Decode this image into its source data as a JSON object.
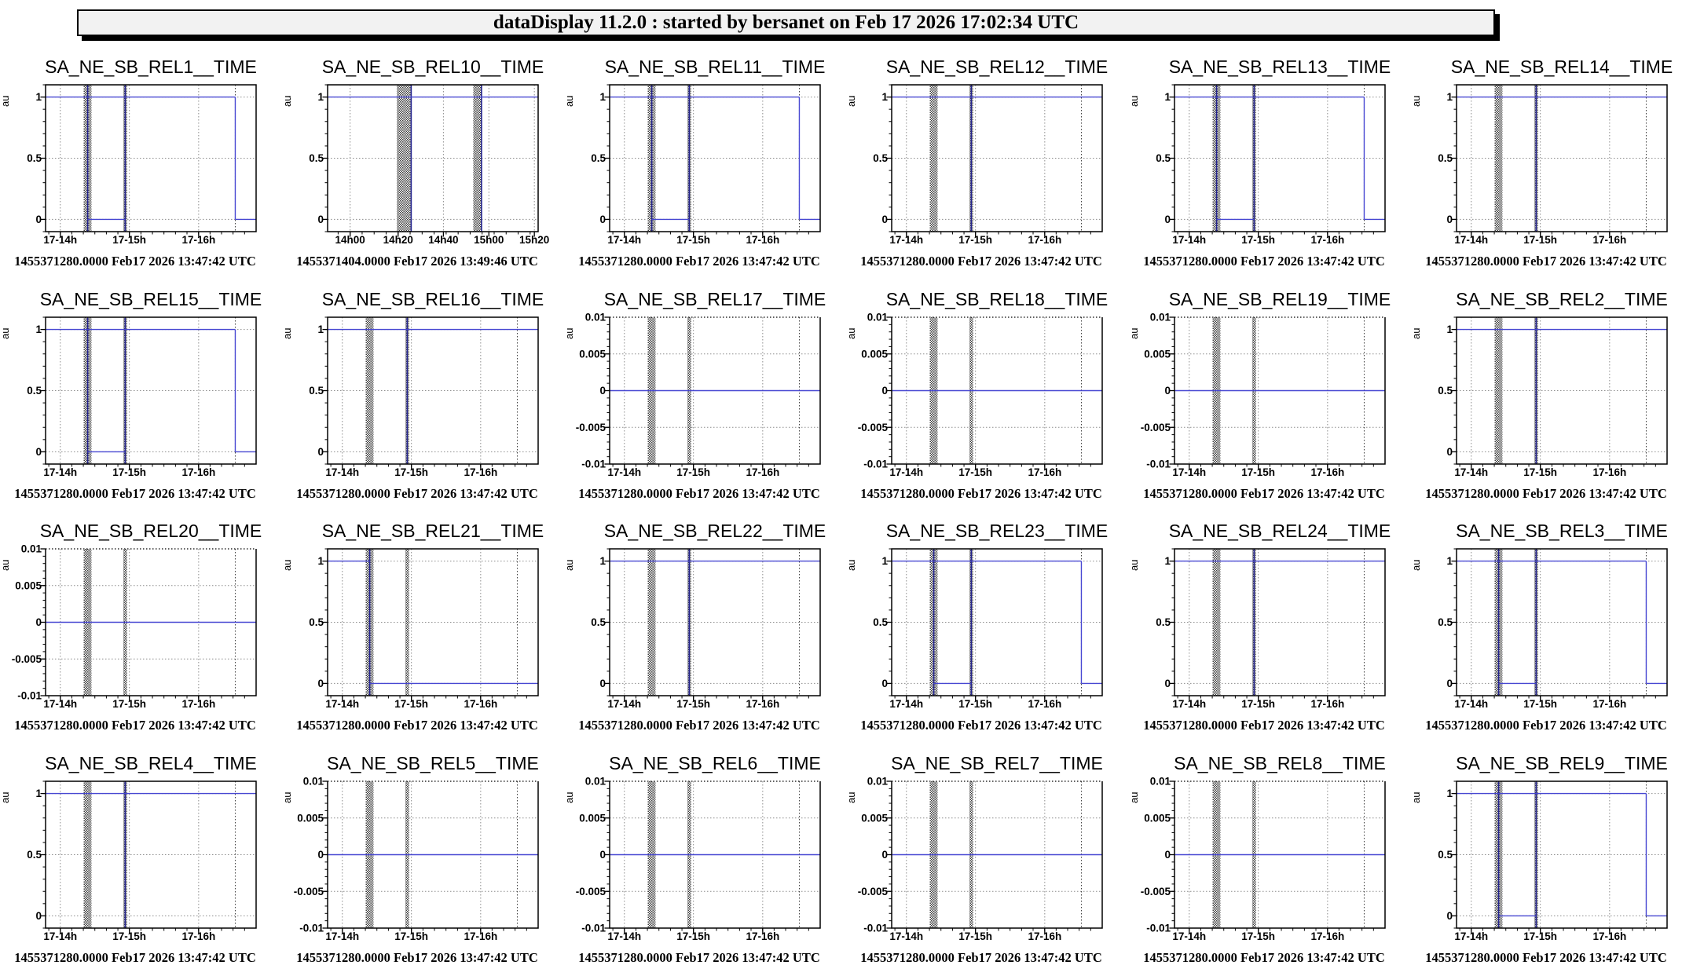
{
  "header": {
    "title": "dataDisplay 11.2.0 : started by bersanet on Feb 17 2026 17:02:34 UTC"
  },
  "colors": {
    "signal_blue": "#4747d2",
    "bar_vertical_blue": "#23238e",
    "grid_gray": "#8c8c8c",
    "marker_black": "#3c3c3c",
    "frame_black": "#000000",
    "hatch_black": "#1a1a1a",
    "text_black": "#000000",
    "header_bg": "#f2f2f2"
  },
  "y_axes": {
    "binary": {
      "min": -0.1,
      "max": 1.1,
      "minor_step": 0.1,
      "dotted_top": false,
      "majors": [
        {
          "v": 0,
          "label": "0"
        },
        {
          "v": 0.5,
          "label": "0.5"
        },
        {
          "v": 1,
          "label": "1"
        }
      ]
    },
    "micro": {
      "min": -0.01,
      "max": 0.01,
      "minor_step": 0.001,
      "dotted_top": true,
      "majors": [
        {
          "v": -0.01,
          "label": "-0.01"
        },
        {
          "v": -0.005,
          "label": "-0.005"
        },
        {
          "v": 0,
          "label": "0"
        },
        {
          "v": 0.005,
          "label": "0.005"
        },
        {
          "v": 0.01,
          "label": "0.01"
        }
      ]
    }
  },
  "x_axes": {
    "standard": {
      "majors": [
        {
          "f": 0.07,
          "label": "17-14h"
        },
        {
          "f": 0.398,
          "label": "17-15h"
        },
        {
          "f": 0.727,
          "label": "17-16h"
        }
      ],
      "minor_step": 0.0547,
      "minor_phase": 0.0153,
      "marker_f": 0.901,
      "bars": [
        [
          0.181,
          0.218
        ],
        [
          0.369,
          0.387
        ]
      ]
    },
    "rel10": {
      "majors": [
        {
          "f": 0.107,
          "label": "14h00"
        },
        {
          "f": 0.335,
          "label": "14h20"
        },
        {
          "f": 0.55,
          "label": "14h40"
        },
        {
          "f": 0.766,
          "label": "15h00"
        },
        {
          "f": 0.982,
          "label": "15h20"
        }
      ],
      "minor_step": 0.057,
      "minor_phase": 0.05,
      "marker_f": null,
      "bars": [
        [
          0.329,
          0.397
        ],
        [
          0.692,
          0.731
        ]
      ]
    }
  },
  "patterns": {
    "toggle": {
      "segments": [
        [
          0,
          0.901,
          1
        ],
        [
          0.2,
          0.378,
          0
        ],
        [
          0.901,
          1,
          0
        ]
      ],
      "bar_verticals": [
        0.2,
        0.378
      ],
      "drop_f": 0.901
    },
    "high": {
      "segments": [
        [
          0,
          1,
          1
        ]
      ],
      "bar_verticals": [
        0.378
      ],
      "drop_f": null
    },
    "drop_low": {
      "segments": [
        [
          0,
          0.2,
          1
        ],
        [
          0.2,
          1,
          0
        ]
      ],
      "bar_verticals": [
        0.2
      ],
      "drop_f": null
    },
    "zero": {
      "segments": [
        [
          0,
          1,
          0
        ]
      ],
      "bar_verticals": [],
      "drop_f": null
    },
    "high10": {
      "segments": [
        [
          0,
          1,
          1
        ]
      ],
      "bar_verticals": [
        0.397,
        0.731
      ],
      "drop_f": null
    }
  },
  "chart_data": [
    {
      "type": "line",
      "title": "SA_NE_SB_REL1__TIME",
      "ylabel": "au",
      "y_axis": "binary",
      "x_axis": "standard",
      "pattern": "toggle",
      "timestamp": "1455371280.0000 Feb17 2026 13:47:42 UTC"
    },
    {
      "type": "line",
      "title": "SA_NE_SB_REL10__TIME",
      "ylabel": "au",
      "y_axis": "binary",
      "x_axis": "rel10",
      "pattern": "high10",
      "timestamp": "1455371404.0000 Feb17 2026 13:49:46 UTC"
    },
    {
      "type": "line",
      "title": "SA_NE_SB_REL11__TIME",
      "ylabel": "au",
      "y_axis": "binary",
      "x_axis": "standard",
      "pattern": "toggle",
      "timestamp": "1455371280.0000 Feb17 2026 13:47:42 UTC"
    },
    {
      "type": "line",
      "title": "SA_NE_SB_REL12__TIME",
      "ylabel": "au",
      "y_axis": "binary",
      "x_axis": "standard",
      "pattern": "high",
      "timestamp": "1455371280.0000 Feb17 2026 13:47:42 UTC"
    },
    {
      "type": "line",
      "title": "SA_NE_SB_REL13__TIME",
      "ylabel": "au",
      "y_axis": "binary",
      "x_axis": "standard",
      "pattern": "toggle",
      "timestamp": "1455371280.0000 Feb17 2026 13:47:42 UTC"
    },
    {
      "type": "line",
      "title": "SA_NE_SB_REL14__TIME",
      "ylabel": "au",
      "y_axis": "binary",
      "x_axis": "standard",
      "pattern": "high",
      "timestamp": "1455371280.0000 Feb17 2026 13:47:42 UTC"
    },
    {
      "type": "line",
      "title": "SA_NE_SB_REL15__TIME",
      "ylabel": "au",
      "y_axis": "binary",
      "x_axis": "standard",
      "pattern": "toggle",
      "timestamp": "1455371280.0000 Feb17 2026 13:47:42 UTC"
    },
    {
      "type": "line",
      "title": "SA_NE_SB_REL16__TIME",
      "ylabel": "au",
      "y_axis": "binary",
      "x_axis": "standard",
      "pattern": "high",
      "timestamp": "1455371280.0000 Feb17 2026 13:47:42 UTC"
    },
    {
      "type": "line",
      "title": "SA_NE_SB_REL17__TIME",
      "ylabel": "au",
      "y_axis": "micro",
      "x_axis": "standard",
      "pattern": "zero",
      "timestamp": "1455371280.0000 Feb17 2026 13:47:42 UTC"
    },
    {
      "type": "line",
      "title": "SA_NE_SB_REL18__TIME",
      "ylabel": "au",
      "y_axis": "micro",
      "x_axis": "standard",
      "pattern": "zero",
      "timestamp": "1455371280.0000 Feb17 2026 13:47:42 UTC"
    },
    {
      "type": "line",
      "title": "SA_NE_SB_REL19__TIME",
      "ylabel": "au",
      "y_axis": "micro",
      "x_axis": "standard",
      "pattern": "zero",
      "timestamp": "1455371280.0000 Feb17 2026 13:47:42 UTC"
    },
    {
      "type": "line",
      "title": "SA_NE_SB_REL2__TIME",
      "ylabel": "au",
      "y_axis": "binary",
      "x_axis": "standard",
      "pattern": "high",
      "timestamp": "1455371280.0000 Feb17 2026 13:47:42 UTC"
    },
    {
      "type": "line",
      "title": "SA_NE_SB_REL20__TIME",
      "ylabel": "au",
      "y_axis": "micro",
      "x_axis": "standard",
      "pattern": "zero",
      "timestamp": "1455371280.0000 Feb17 2026 13:47:42 UTC"
    },
    {
      "type": "line",
      "title": "SA_NE_SB_REL21__TIME",
      "ylabel": "au",
      "y_axis": "binary",
      "x_axis": "standard",
      "pattern": "drop_low",
      "timestamp": "1455371280.0000 Feb17 2026 13:47:42 UTC"
    },
    {
      "type": "line",
      "title": "SA_NE_SB_REL22__TIME",
      "ylabel": "au",
      "y_axis": "binary",
      "x_axis": "standard",
      "pattern": "high",
      "timestamp": "1455371280.0000 Feb17 2026 13:47:42 UTC"
    },
    {
      "type": "line",
      "title": "SA_NE_SB_REL23__TIME",
      "ylabel": "au",
      "y_axis": "binary",
      "x_axis": "standard",
      "pattern": "toggle",
      "timestamp": "1455371280.0000 Feb17 2026 13:47:42 UTC"
    },
    {
      "type": "line",
      "title": "SA_NE_SB_REL24__TIME",
      "ylabel": "au",
      "y_axis": "binary",
      "x_axis": "standard",
      "pattern": "high",
      "timestamp": "1455371280.0000 Feb17 2026 13:47:42 UTC"
    },
    {
      "type": "line",
      "title": "SA_NE_SB_REL3__TIME",
      "ylabel": "au",
      "y_axis": "binary",
      "x_axis": "standard",
      "pattern": "toggle",
      "timestamp": "1455371280.0000 Feb17 2026 13:47:42 UTC"
    },
    {
      "type": "line",
      "title": "SA_NE_SB_REL4__TIME",
      "ylabel": "au",
      "y_axis": "binary",
      "x_axis": "standard",
      "pattern": "high",
      "timestamp": "1455371280.0000 Feb17 2026 13:47:42 UTC"
    },
    {
      "type": "line",
      "title": "SA_NE_SB_REL5__TIME",
      "ylabel": "au",
      "y_axis": "micro",
      "x_axis": "standard",
      "pattern": "zero",
      "timestamp": "1455371280.0000 Feb17 2026 13:47:42 UTC"
    },
    {
      "type": "line",
      "title": "SA_NE_SB_REL6__TIME",
      "ylabel": "au",
      "y_axis": "micro",
      "x_axis": "standard",
      "pattern": "zero",
      "timestamp": "1455371280.0000 Feb17 2026 13:47:42 UTC"
    },
    {
      "type": "line",
      "title": "SA_NE_SB_REL7__TIME",
      "ylabel": "au",
      "y_axis": "micro",
      "x_axis": "standard",
      "pattern": "zero",
      "timestamp": "1455371280.0000 Feb17 2026 13:47:42 UTC"
    },
    {
      "type": "line",
      "title": "SA_NE_SB_REL8__TIME",
      "ylabel": "au",
      "y_axis": "micro",
      "x_axis": "standard",
      "pattern": "zero",
      "timestamp": "1455371280.0000 Feb17 2026 13:47:42 UTC"
    },
    {
      "type": "line",
      "title": "SA_NE_SB_REL9__TIME",
      "ylabel": "au",
      "y_axis": "binary",
      "x_axis": "standard",
      "pattern": "toggle",
      "timestamp": "1455371280.0000 Feb17 2026 13:47:42 UTC"
    }
  ]
}
